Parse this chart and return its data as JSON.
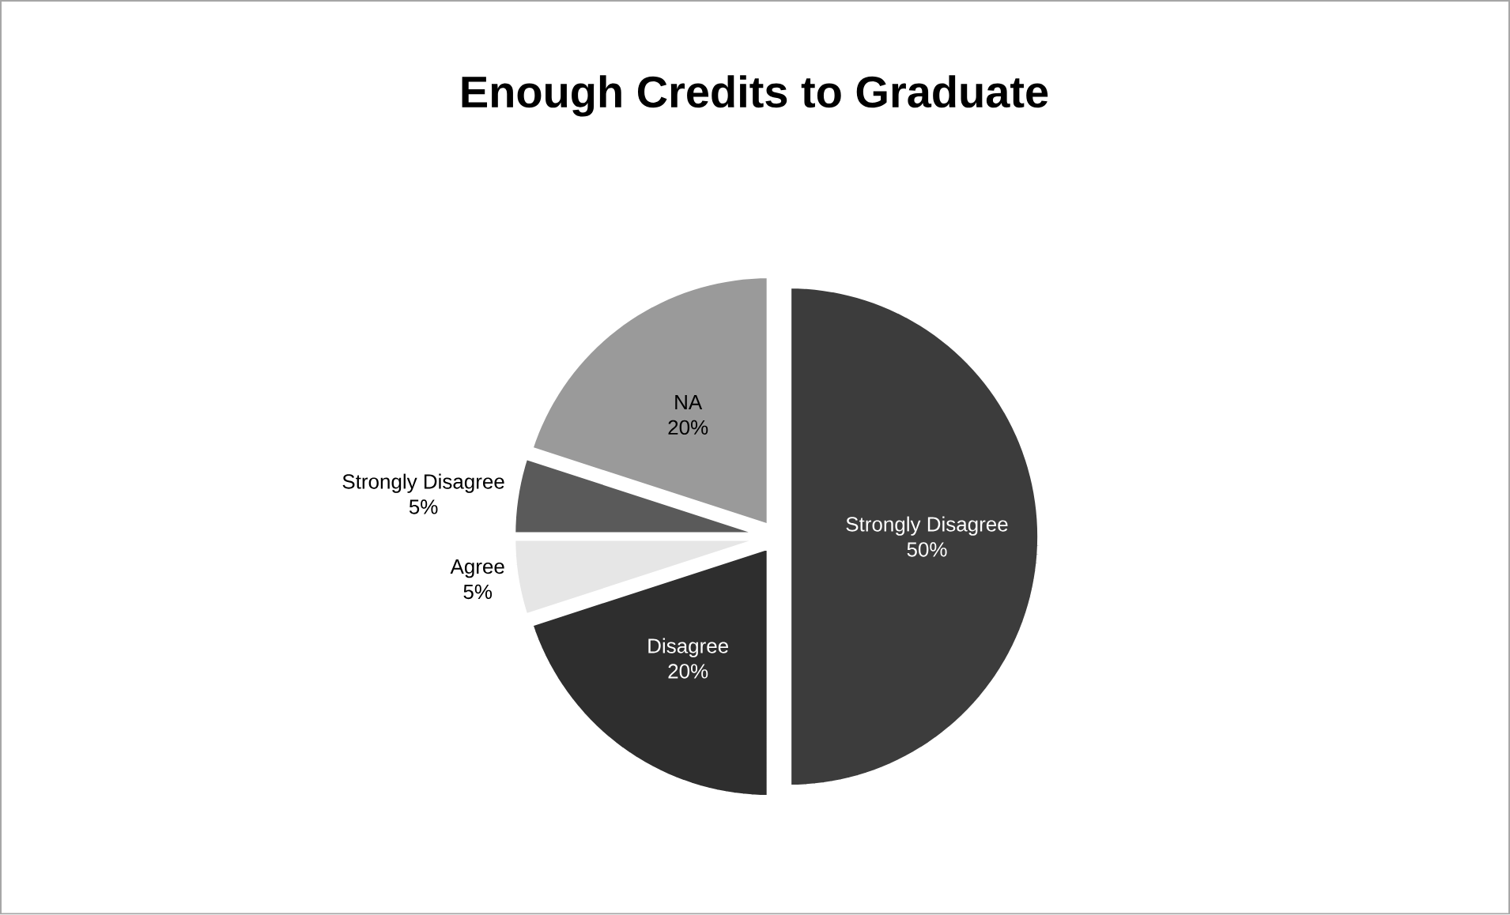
{
  "chart_data": {
    "type": "pie",
    "title": "Enough Credits to Graduate",
    "categories": [
      "Strongly Disagree",
      "Disagree",
      "Agree",
      "Strongly Disagree",
      "NA"
    ],
    "values": [
      50,
      20,
      5,
      5,
      20
    ],
    "value_labels": [
      "50%",
      "20%",
      "5%",
      "5%",
      "20%"
    ],
    "colors": [
      "#3c3c3c",
      "#2e2e2e",
      "#e6e6e6",
      "#5a5a5a",
      "#9a9a9a"
    ]
  }
}
